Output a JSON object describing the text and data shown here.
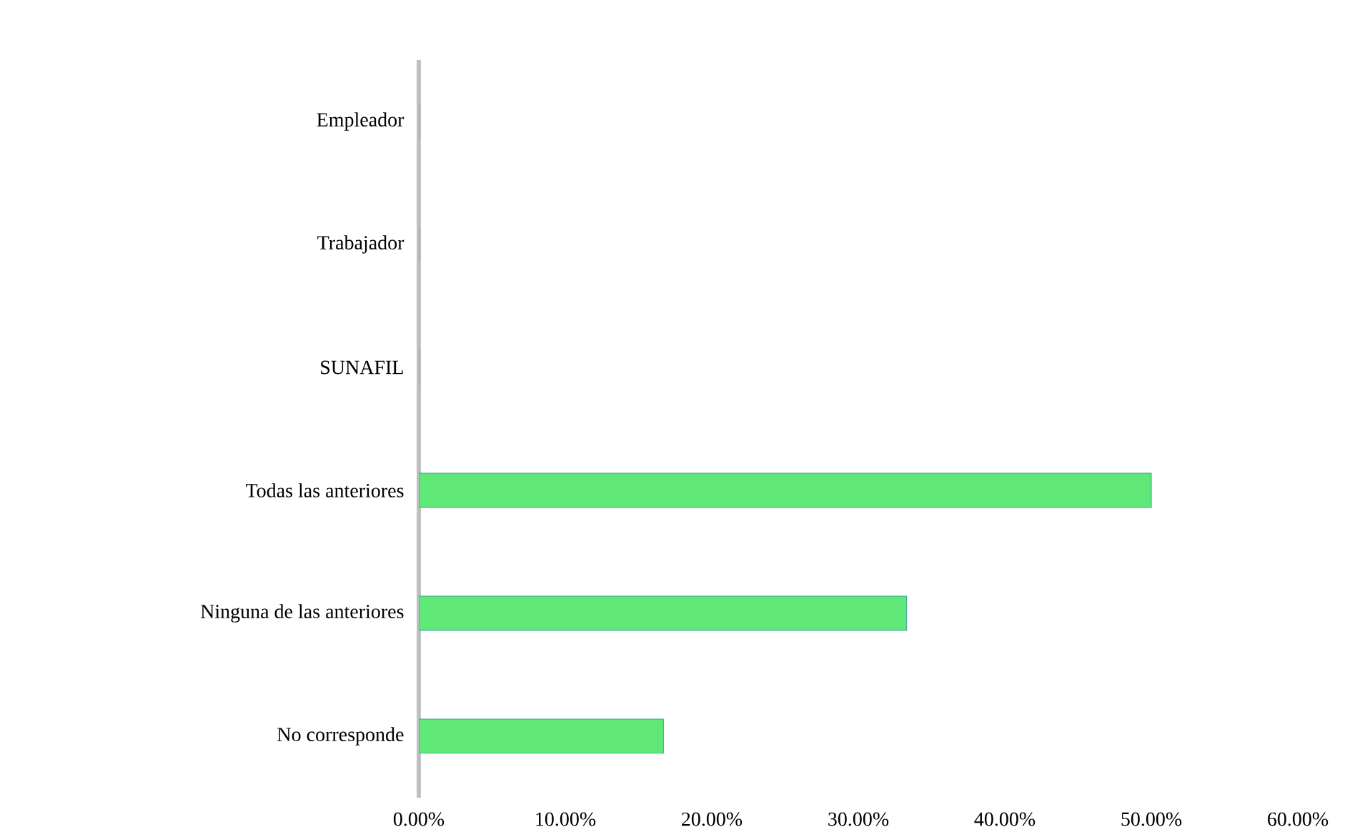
{
  "chart_data": {
    "type": "bar",
    "orientation": "horizontal",
    "categories": [
      "Empleador",
      "Trabajador",
      "SUNAFIL",
      "Todas las anteriores",
      "Ninguna de las anteriores",
      "No corresponde"
    ],
    "values": [
      0,
      0,
      0,
      50,
      33.3,
      16.7
    ],
    "color": "#5fe878",
    "xlim": [
      0,
      60
    ],
    "xticks": [
      {
        "value": 0,
        "label": "0.00%"
      },
      {
        "value": 10,
        "label": "10.00%"
      },
      {
        "value": 20,
        "label": "20.00%"
      },
      {
        "value": 30,
        "label": "30.00%"
      },
      {
        "value": 40,
        "label": "40.00%"
      },
      {
        "value": 50,
        "label": "50.00%"
      },
      {
        "value": 60,
        "label": "60.00%"
      }
    ]
  }
}
